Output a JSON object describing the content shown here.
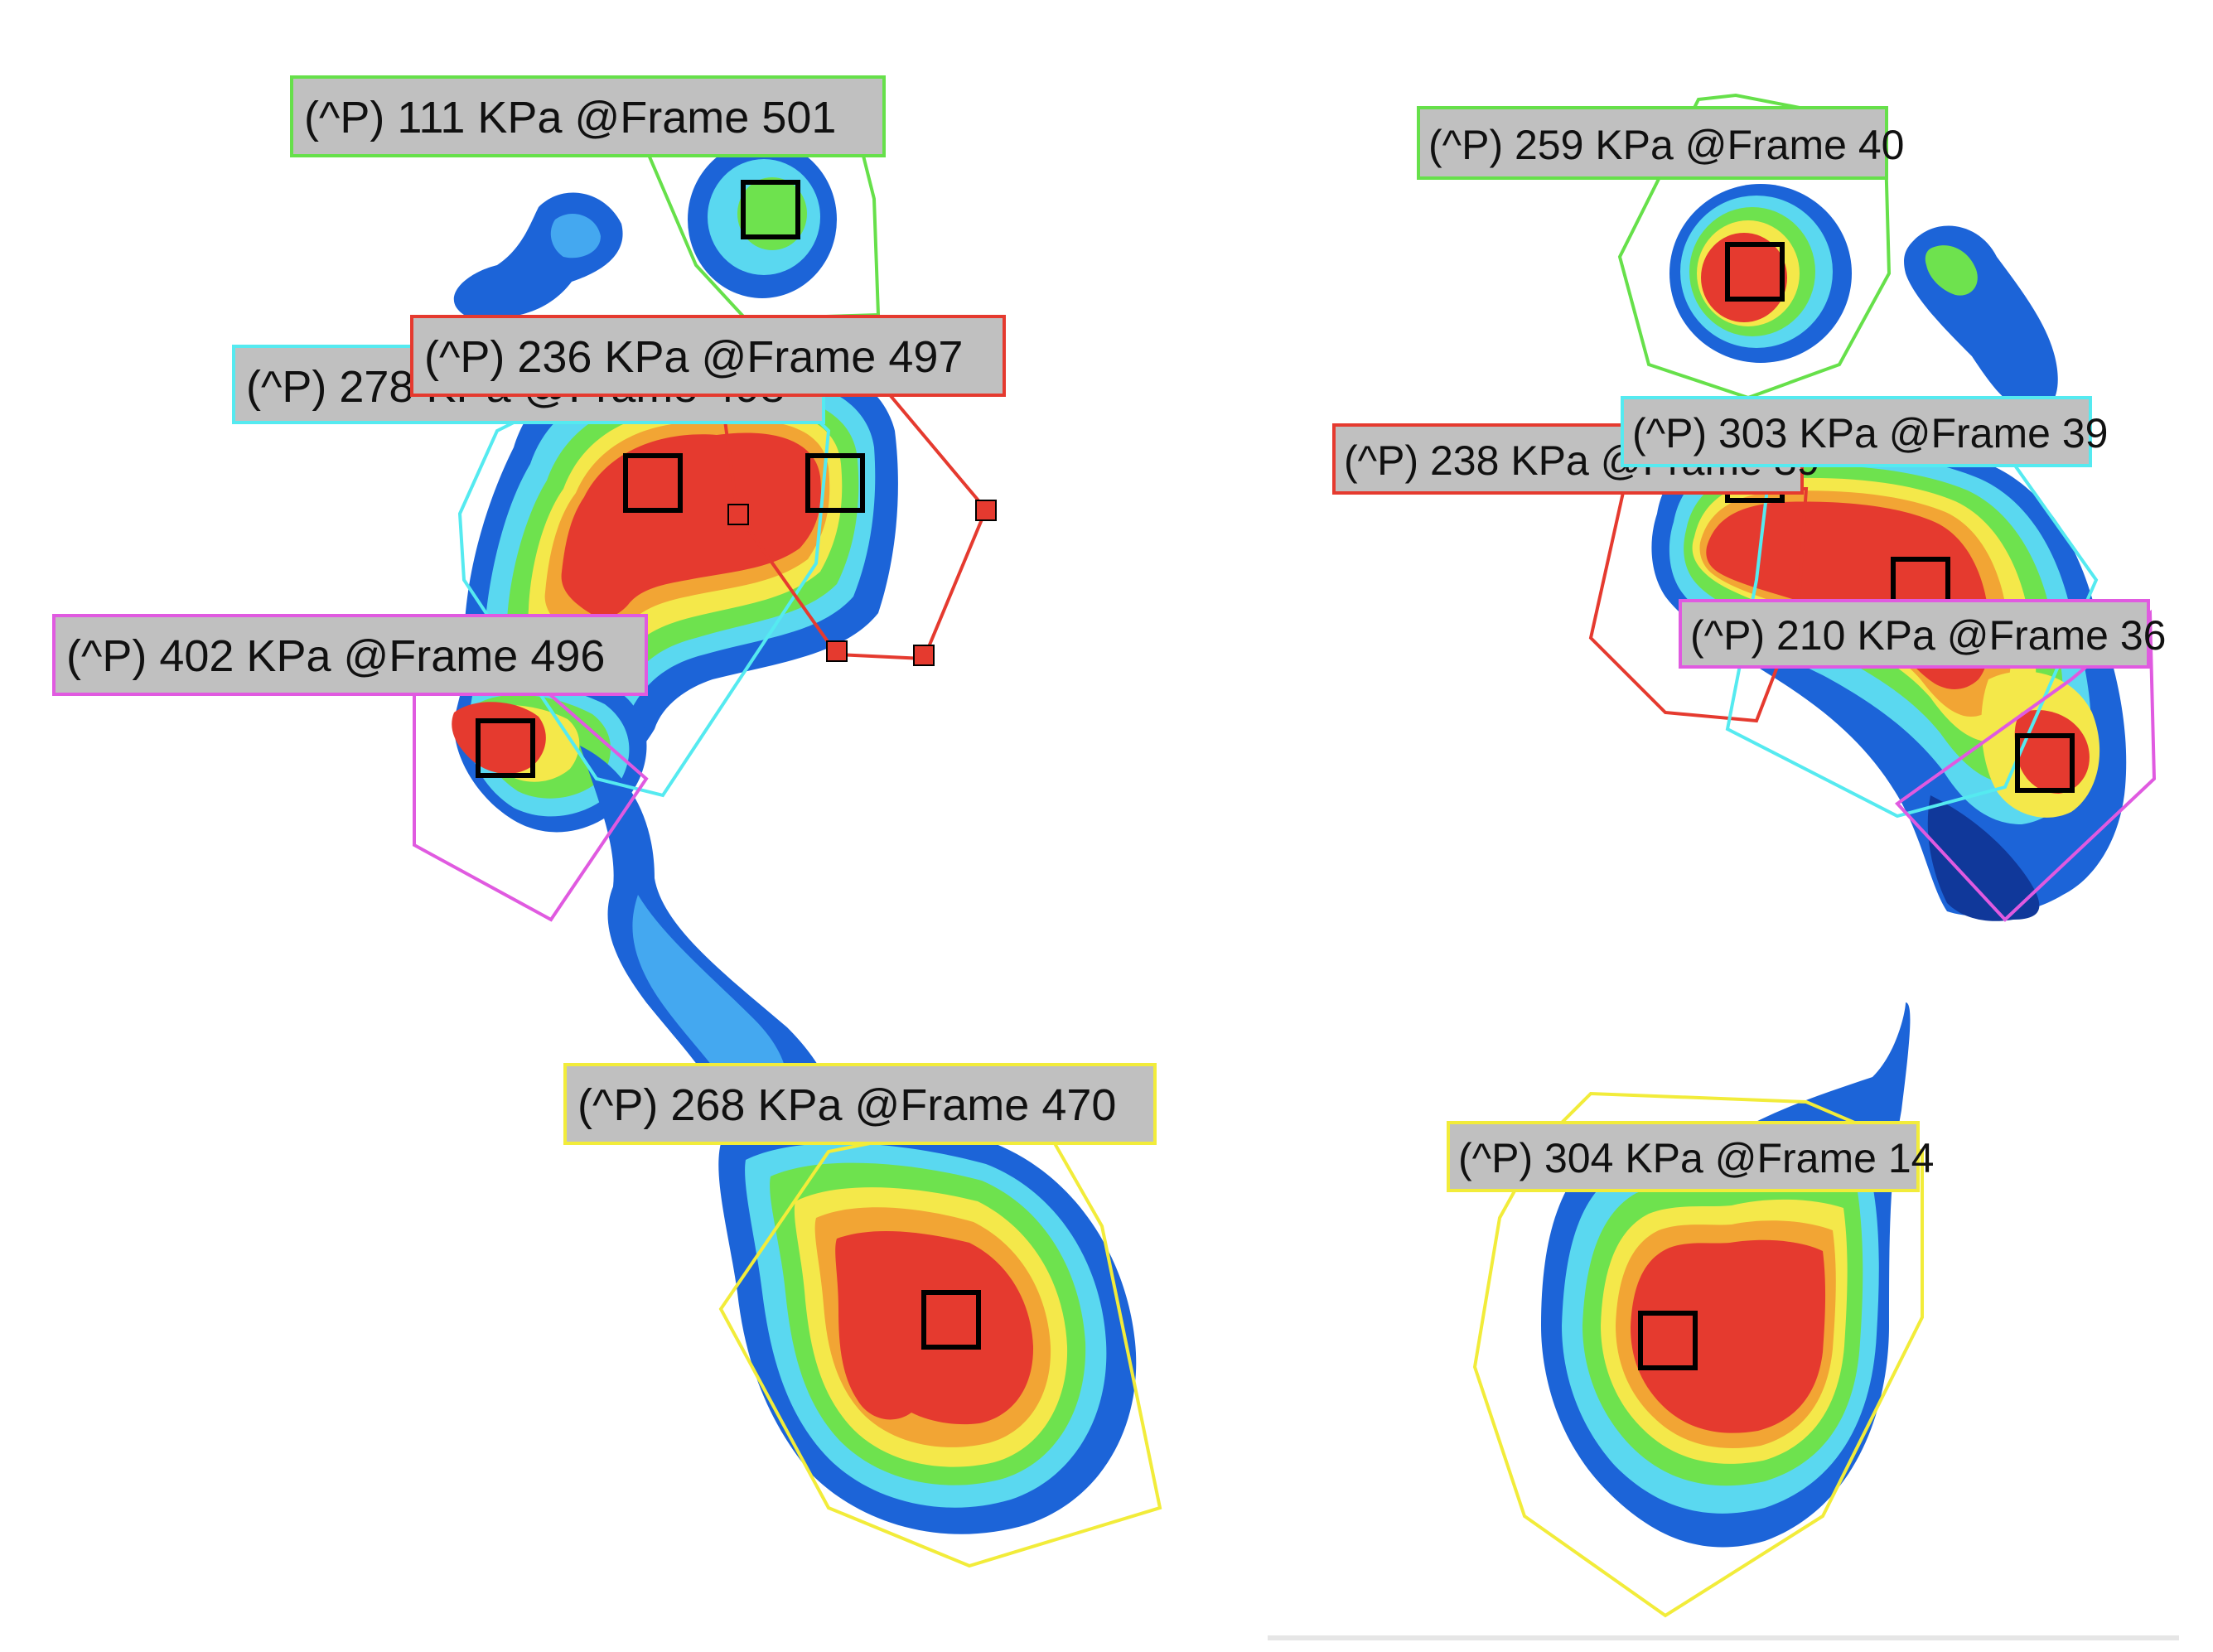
{
  "colors": {
    "red": "#e53a2f",
    "orange": "#f2a534",
    "yellow": "#f4e84a",
    "green": "#6ee24e",
    "cyan": "#5ad8f0",
    "lightblue": "#44a8f0",
    "blue": "#1c64d8",
    "darkblue": "#10389a",
    "label_bg": "#c0c0c0",
    "region_green": "#66e04a",
    "region_red": "#e53a2f",
    "region_cyan": "#55eaf0",
    "region_magenta": "#e05ae0",
    "region_yellow": "#f2ec3a"
  },
  "left_foot": {
    "labels": [
      {
        "id": "toe",
        "text": "(^P) 111 KPa @Frame 501"
      },
      {
        "id": "lateral_forefoot",
        "text": "(^P) 236 KPa @Frame 497"
      },
      {
        "id": "medial_forefoot",
        "text": "(^P) 278 KPa @Frame 498"
      },
      {
        "id": "midfoot",
        "text": "(^P) 402 KPa @Frame 496"
      },
      {
        "id": "heel",
        "text": "(^P) 268 KPa @Frame 470"
      }
    ]
  },
  "right_foot": {
    "labels": [
      {
        "id": "toe",
        "text": "(^P) 259 KPa @Frame 40"
      },
      {
        "id": "medial_forefoot",
        "text": "(^P) 238 KPa @Frame 39"
      },
      {
        "id": "central_forefoot",
        "text": "(^P) 303 KPa @Frame 39"
      },
      {
        "id": "lateral_forefoot",
        "text": "(^P) 210 KPa @Frame 36"
      },
      {
        "id": "heel",
        "text": "(^P) 304 KPa @Frame 14"
      }
    ]
  }
}
